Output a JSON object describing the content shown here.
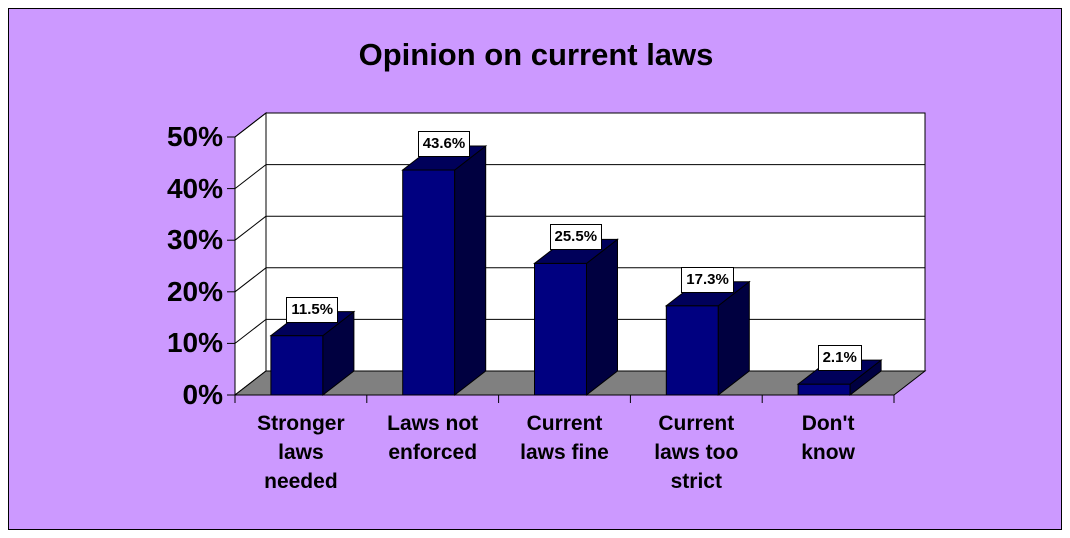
{
  "colors": {
    "background": "#cc99ff",
    "plot_wall": "#ffffff",
    "floor": "#808080",
    "bar_front": "#000080",
    "bar_side": "#000040",
    "bar_top": "#00005a",
    "gridline": "#000000"
  },
  "chart_data": {
    "type": "bar",
    "title": "Opinion on current laws",
    "xlabel": "",
    "ylabel": "",
    "ylim": [
      0,
      50
    ],
    "yticks": [
      "0%",
      "10%",
      "20%",
      "30%",
      "40%",
      "50%"
    ],
    "grid": true,
    "legend": "none",
    "style": "3d",
    "categories": [
      [
        "Stronger",
        "laws",
        "needed"
      ],
      [
        "Laws not",
        "enforced"
      ],
      [
        "Current",
        "laws fine"
      ],
      [
        "Current",
        "laws too",
        "strict"
      ],
      [
        "Don't",
        "know"
      ]
    ],
    "values": [
      11.5,
      43.6,
      25.5,
      17.3,
      2.1
    ],
    "data_labels": [
      "11.5%",
      "43.6%",
      "25.5%",
      "17.3%",
      "2.1%"
    ]
  }
}
